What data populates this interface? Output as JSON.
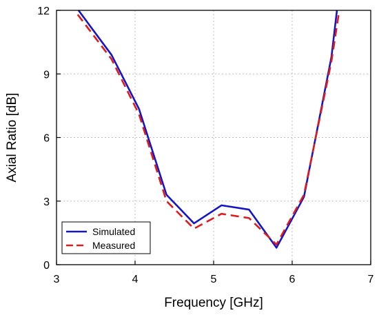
{
  "chart_data": {
    "type": "line",
    "title": "",
    "xlabel": "Frequency    [GHz]",
    "ylabel": "Axial Ratio    [dB]",
    "xlim": [
      3,
      7
    ],
    "ylim": [
      0,
      12
    ],
    "xticks": [
      3,
      4,
      5,
      6,
      7
    ],
    "yticks": [
      0,
      3,
      6,
      9,
      12
    ],
    "x_tick_labels": [
      "3",
      "4",
      "5",
      "6",
      "7"
    ],
    "y_tick_labels": [
      "0",
      "3",
      "6",
      "9",
      "12"
    ],
    "grid": true,
    "legend_position": "bottom-left",
    "series": [
      {
        "name": "Simulated",
        "color": "#1515c8",
        "style": "solid",
        "x": [
          3.28,
          3.7,
          4.05,
          4.4,
          4.75,
          5.1,
          5.45,
          5.8,
          6.15,
          6.5,
          6.57
        ],
        "y": [
          12.0,
          9.9,
          7.35,
          3.3,
          1.95,
          2.8,
          2.6,
          0.8,
          3.2,
          9.8,
          12.0
        ]
      },
      {
        "name": "Measured",
        "color": "#e01b1b",
        "style": "dashed",
        "x": [
          3.27,
          3.7,
          4.05,
          4.4,
          4.75,
          5.1,
          5.45,
          5.8,
          6.15,
          6.5,
          6.6
        ],
        "y": [
          11.8,
          9.7,
          7.1,
          3.0,
          1.7,
          2.4,
          2.2,
          0.95,
          3.3,
          9.6,
          12.0
        ]
      }
    ]
  }
}
